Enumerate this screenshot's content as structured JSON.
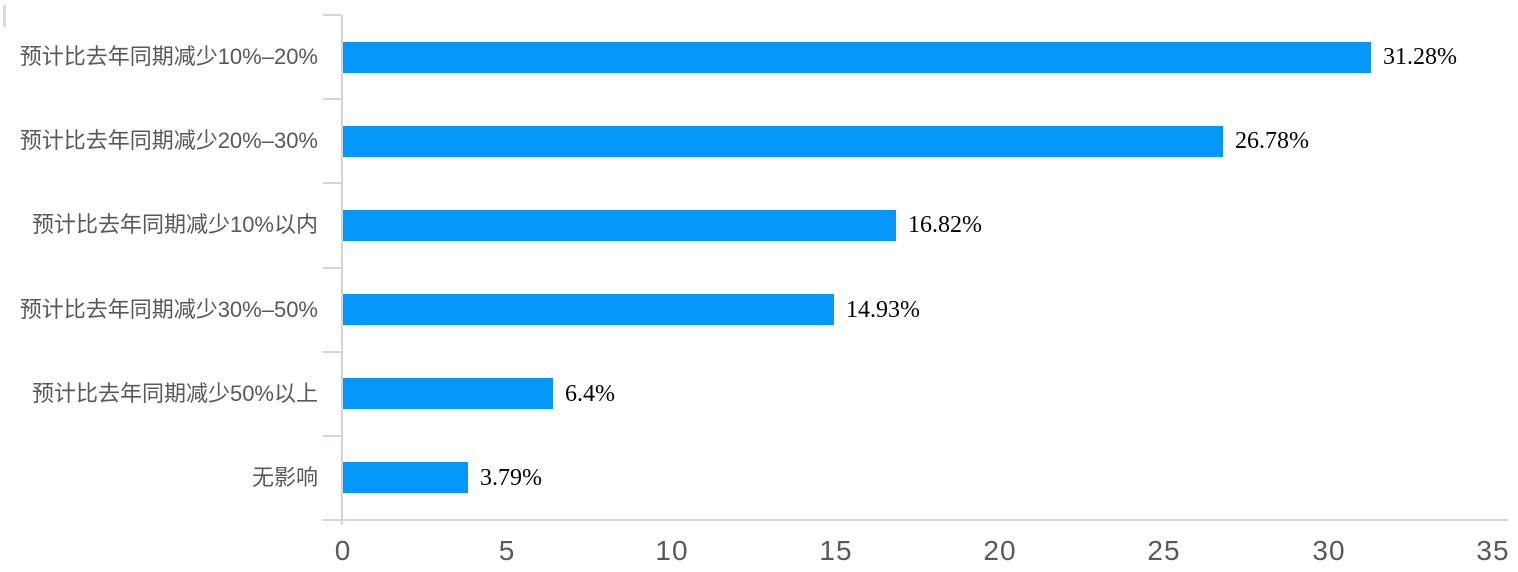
{
  "chart_data": {
    "type": "bar",
    "orientation": "horizontal",
    "title": "",
    "xlabel": "",
    "ylabel": "",
    "categories": [
      "预计比去年同期减少10%–20%",
      "预计比去年同期减少20%–30%",
      "预计比去年同期减少10%以内",
      "预计比去年同期减少30%–50%",
      "预计比去年同期减少50%以上",
      "无影响"
    ],
    "values": [
      31.28,
      26.78,
      16.82,
      14.93,
      6.4,
      3.79
    ],
    "value_labels": [
      "31.28%",
      "26.78%",
      "16.82%",
      "14.93%",
      "6.4%",
      "3.79%"
    ],
    "x_ticks": [
      "0",
      "5",
      "10",
      "15",
      "20",
      "25",
      "30",
      "35"
    ],
    "x_tick_values": [
      0,
      5,
      10,
      15,
      20,
      25,
      30,
      35
    ],
    "xlim": [
      0,
      35
    ],
    "grid": false,
    "legend": false,
    "bar_color": "#0598F8",
    "axis_color": "#CFD6DC",
    "category_label_color": "#595959",
    "tick_label_color": "#595959",
    "value_label_color": "#000000"
  }
}
